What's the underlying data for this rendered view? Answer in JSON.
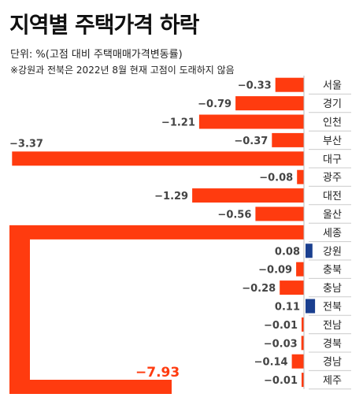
{
  "header": {
    "title": "지역별 주택가격 하락",
    "unit": "단위: %(고점 대비 주택매매가격변동률)",
    "note": "※강원과 전북은 2022년 8월 현재 고점이 도래하지 않음"
  },
  "colors": {
    "negative": "#ff3b0f",
    "positive": "#1a3f8f",
    "value_text": "#444444",
    "highlight_text": "#ff3b0f",
    "region_text": "#222222"
  },
  "chart_data": {
    "type": "bar",
    "orientation": "horizontal",
    "categories": [
      "서울",
      "경기",
      "인천",
      "부산",
      "대구",
      "광주",
      "대전",
      "울산",
      "세종",
      "강원",
      "충북",
      "충남",
      "전북",
      "전남",
      "경북",
      "경남",
      "제주"
    ],
    "values": [
      -0.33,
      -0.79,
      -1.21,
      -0.37,
      -3.37,
      -0.08,
      -1.29,
      -0.56,
      -7.93,
      0.08,
      -0.09,
      -0.28,
      0.11,
      -0.01,
      -0.03,
      -0.14,
      -0.01
    ],
    "value_labels": [
      "−0.33",
      "−0.79",
      "−1.21",
      "−0.37",
      "−3.37",
      "−0.08",
      "−1.29",
      "−0.56",
      "−7.93",
      "0.08",
      "−0.09",
      "−0.28",
      "0.11",
      "−0.01",
      "−0.03",
      "−0.14",
      "−0.01"
    ],
    "highlight": "세종",
    "title": "지역별 주택가격 하락",
    "ylabel": "",
    "xlabel": ""
  }
}
